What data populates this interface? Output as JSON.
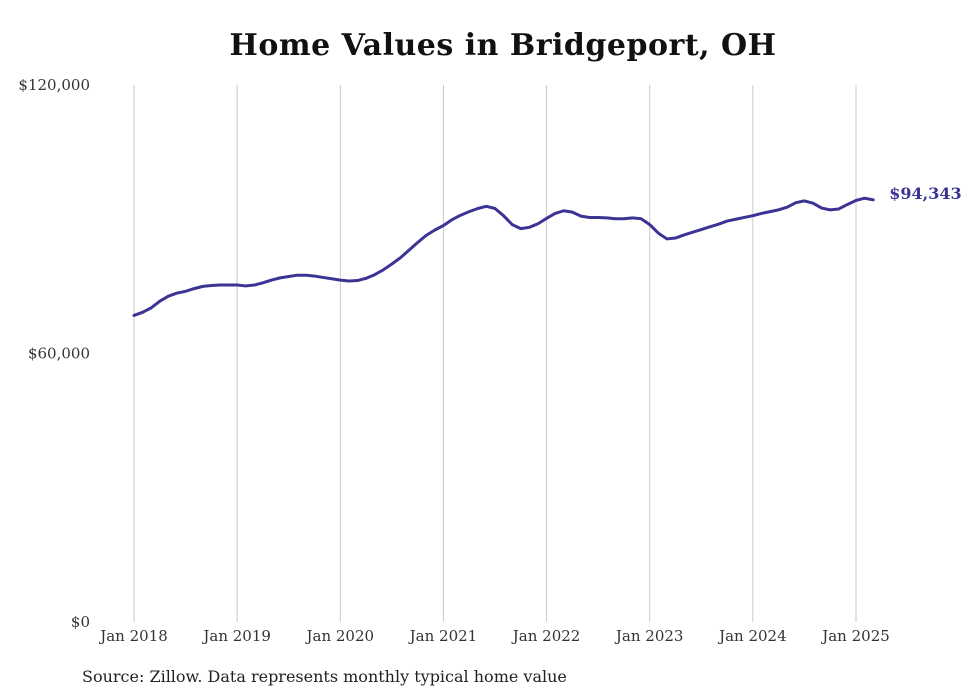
{
  "chart_data": {
    "type": "line",
    "title": "Home Values in Bridgeport, OH",
    "xlabel": "",
    "ylabel": "",
    "ylim": [
      0,
      120000
    ],
    "yticks": [
      {
        "value": 0,
        "label": "$0"
      },
      {
        "value": 60000,
        "label": "$60,000"
      },
      {
        "value": 120000,
        "label": "$120,000"
      }
    ],
    "xticks": [
      {
        "value": 2018.0,
        "label": "Jan 2018"
      },
      {
        "value": 2019.0,
        "label": "Jan 2019"
      },
      {
        "value": 2020.0,
        "label": "Jan 2020"
      },
      {
        "value": 2021.0,
        "label": "Jan 2021"
      },
      {
        "value": 2022.0,
        "label": "Jan 2022"
      },
      {
        "value": 2023.0,
        "label": "Jan 2023"
      },
      {
        "value": 2024.0,
        "label": "Jan 2024"
      },
      {
        "value": 2025.0,
        "label": "Jan 2025"
      }
    ],
    "xlim": [
      2018.0,
      2025.2
    ],
    "grid": {
      "vertical": true,
      "horizontal": false
    },
    "line_color": "#3b3494",
    "grid_color": "#c8c8c8",
    "end_label": "$94,343",
    "series": [
      {
        "points": [
          [
            2018.0,
            68500
          ],
          [
            2018.083,
            69200
          ],
          [
            2018.167,
            70200
          ],
          [
            2018.25,
            71700
          ],
          [
            2018.333,
            72800
          ],
          [
            2018.417,
            73500
          ],
          [
            2018.5,
            73900
          ],
          [
            2018.583,
            74500
          ],
          [
            2018.667,
            75000
          ],
          [
            2018.75,
            75200
          ],
          [
            2018.833,
            75300
          ],
          [
            2018.917,
            75300
          ],
          [
            2019.0,
            75300
          ],
          [
            2019.083,
            75100
          ],
          [
            2019.167,
            75300
          ],
          [
            2019.25,
            75800
          ],
          [
            2019.333,
            76400
          ],
          [
            2019.417,
            76900
          ],
          [
            2019.5,
            77200
          ],
          [
            2019.583,
            77500
          ],
          [
            2019.667,
            77500
          ],
          [
            2019.75,
            77300
          ],
          [
            2019.833,
            77000
          ],
          [
            2019.917,
            76700
          ],
          [
            2020.0,
            76400
          ],
          [
            2020.083,
            76200
          ],
          [
            2020.167,
            76300
          ],
          [
            2020.25,
            76800
          ],
          [
            2020.333,
            77600
          ],
          [
            2020.417,
            78700
          ],
          [
            2020.5,
            80000
          ],
          [
            2020.583,
            81400
          ],
          [
            2020.667,
            83100
          ],
          [
            2020.75,
            84800
          ],
          [
            2020.833,
            86400
          ],
          [
            2020.917,
            87600
          ],
          [
            2021.0,
            88600
          ],
          [
            2021.083,
            89900
          ],
          [
            2021.167,
            90900
          ],
          [
            2021.25,
            91700
          ],
          [
            2021.333,
            92400
          ],
          [
            2021.417,
            92900
          ],
          [
            2021.5,
            92400
          ],
          [
            2021.583,
            90800
          ],
          [
            2021.667,
            88800
          ],
          [
            2021.75,
            87900
          ],
          [
            2021.833,
            88200
          ],
          [
            2021.917,
            89000
          ],
          [
            2022.0,
            90200
          ],
          [
            2022.083,
            91300
          ],
          [
            2022.167,
            91900
          ],
          [
            2022.25,
            91600
          ],
          [
            2022.333,
            90700
          ],
          [
            2022.417,
            90400
          ],
          [
            2022.5,
            90400
          ],
          [
            2022.583,
            90300
          ],
          [
            2022.667,
            90100
          ],
          [
            2022.75,
            90100
          ],
          [
            2022.833,
            90300
          ],
          [
            2022.917,
            90100
          ],
          [
            2023.0,
            88800
          ],
          [
            2023.083,
            86900
          ],
          [
            2023.167,
            85600
          ],
          [
            2023.25,
            85800
          ],
          [
            2023.333,
            86500
          ],
          [
            2023.417,
            87100
          ],
          [
            2023.5,
            87700
          ],
          [
            2023.583,
            88300
          ],
          [
            2023.667,
            88900
          ],
          [
            2023.75,
            89600
          ],
          [
            2023.833,
            90000
          ],
          [
            2023.917,
            90400
          ],
          [
            2024.0,
            90800
          ],
          [
            2024.083,
            91300
          ],
          [
            2024.167,
            91700
          ],
          [
            2024.25,
            92100
          ],
          [
            2024.333,
            92700
          ],
          [
            2024.417,
            93700
          ],
          [
            2024.5,
            94100
          ],
          [
            2024.583,
            93600
          ],
          [
            2024.667,
            92500
          ],
          [
            2024.75,
            92100
          ],
          [
            2024.833,
            92300
          ],
          [
            2024.917,
            93300
          ],
          [
            2025.0,
            94200
          ],
          [
            2025.083,
            94700
          ],
          [
            2025.167,
            94343
          ]
        ]
      }
    ]
  },
  "source_note": "Source: Zillow. Data represents monthly typical home value"
}
